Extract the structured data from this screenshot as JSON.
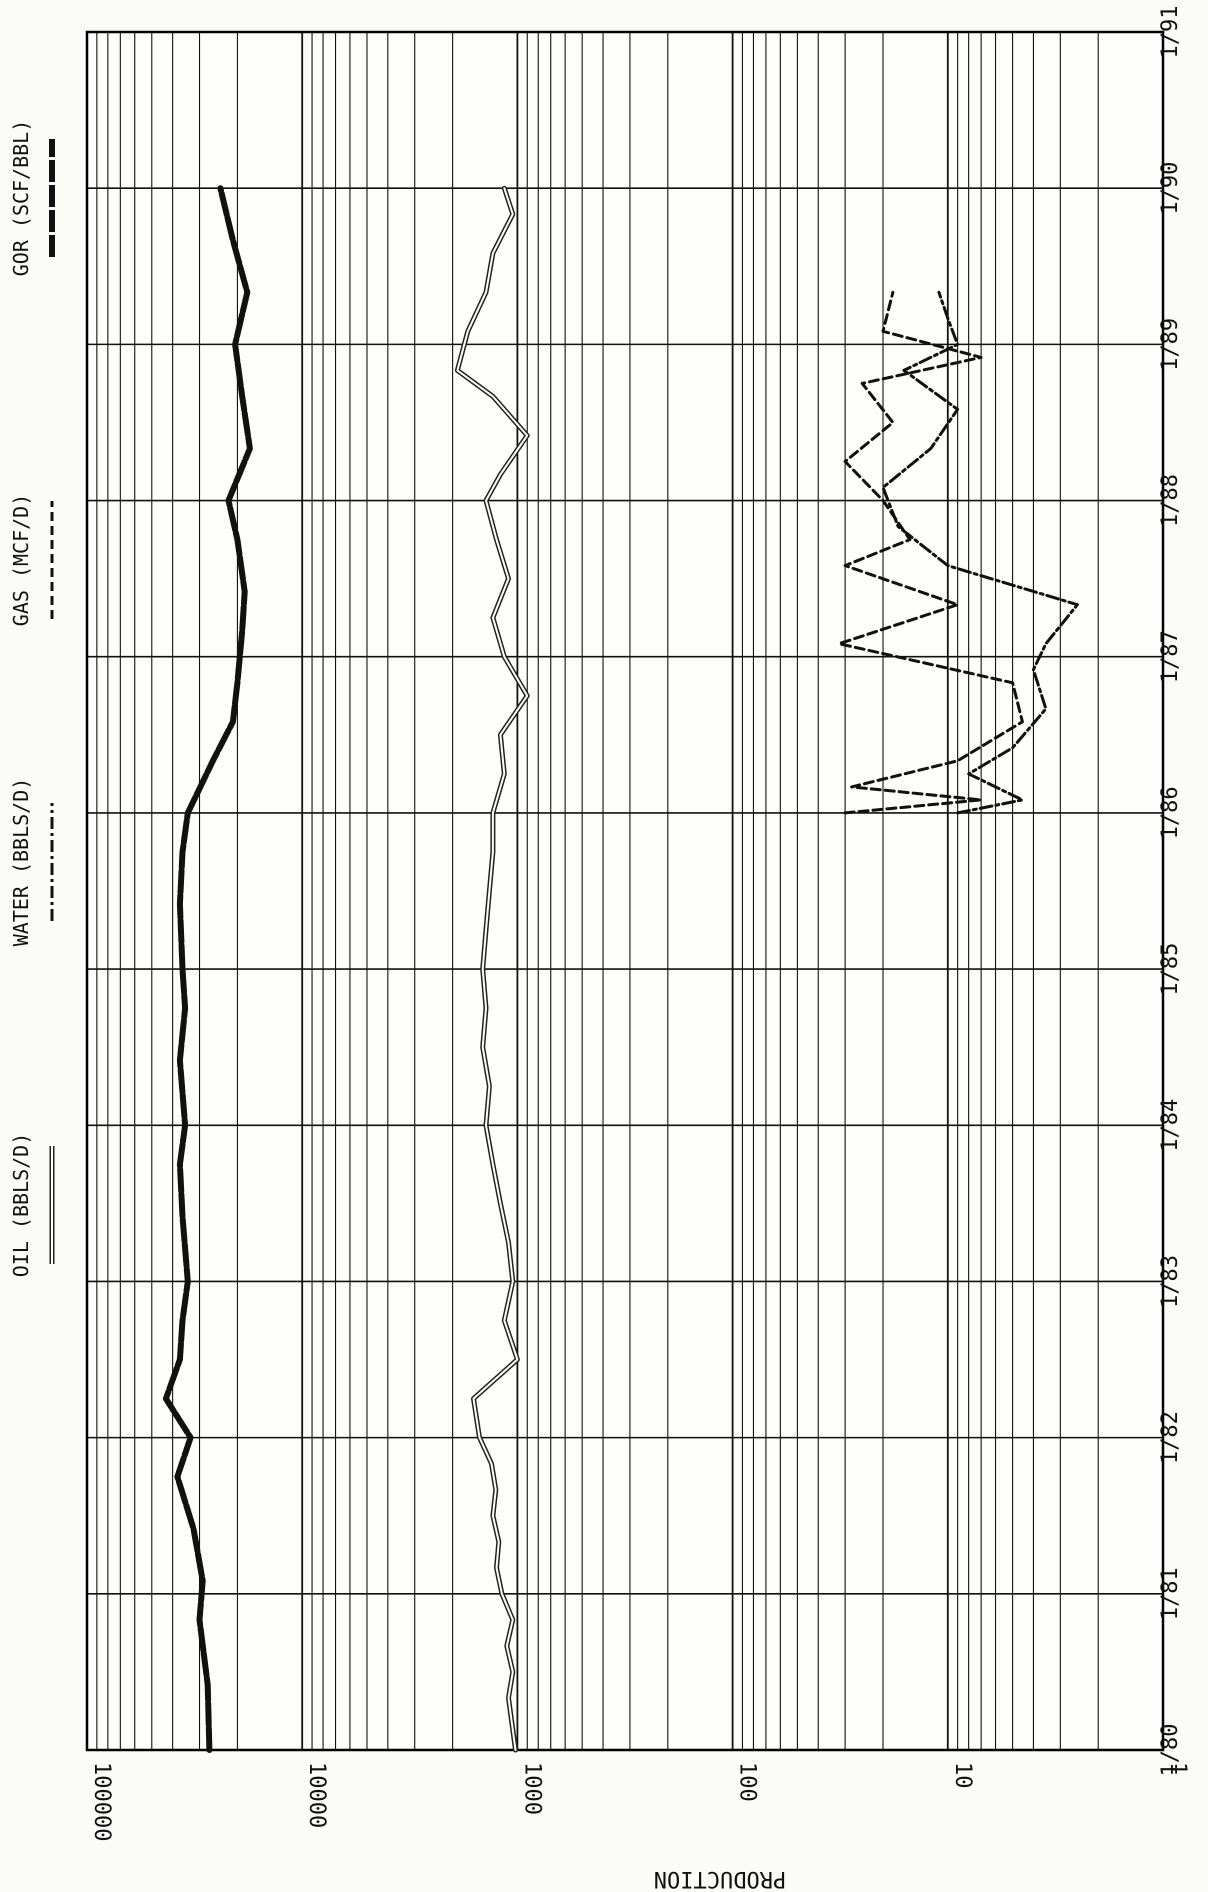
{
  "chart_data": {
    "type": "line",
    "orientation": "rotated 90 degrees clockwise (time runs bottom to top, log production axis runs left to right)",
    "ylabel": "PRODUCTION",
    "yscale": "log",
    "ylim": [
      1,
      100000
    ],
    "ytick_labels": [
      "100000",
      "10000",
      "1000",
      "100",
      "10",
      "1"
    ],
    "xlim": [
      "1/80",
      "1/91"
    ],
    "xtick_labels": [
      "1/80",
      "1/81",
      "1/82",
      "1/83",
      "1/84",
      "1/85",
      "1/86",
      "1/87",
      "1/88",
      "1/89",
      "1/90",
      "1/91"
    ],
    "grid": true,
    "legend_position": "along the top (left edge of rotated page)",
    "series": [
      {
        "name": "OIL (BBLS/D)",
        "style": "double-line",
        "color": "#222222",
        "points": [
          [
            "1980-01",
            1020
          ],
          [
            "1980-03",
            1060
          ],
          [
            "1980-05",
            1100
          ],
          [
            "1980-07",
            1050
          ],
          [
            "1980-09",
            1120
          ],
          [
            "1980-11",
            1050
          ],
          [
            "1981-01",
            1180
          ],
          [
            "1981-03",
            1250
          ],
          [
            "1981-05",
            1220
          ],
          [
            "1981-07",
            1300
          ],
          [
            "1981-09",
            1260
          ],
          [
            "1981-11",
            1320
          ],
          [
            "1982-01",
            1500
          ],
          [
            "1982-04",
            1600
          ],
          [
            "1982-07",
            1000
          ],
          [
            "1982-10",
            1150
          ],
          [
            "1983-01",
            1050
          ],
          [
            "1983-04",
            1100
          ],
          [
            "1983-07",
            1200
          ],
          [
            "1983-10",
            1300
          ],
          [
            "1984-01",
            1400
          ],
          [
            "1984-04",
            1350
          ],
          [
            "1984-07",
            1450
          ],
          [
            "1984-10",
            1400
          ],
          [
            "1985-01",
            1450
          ],
          [
            "1985-04",
            1400
          ],
          [
            "1985-07",
            1350
          ],
          [
            "1985-10",
            1300
          ],
          [
            "1986-01",
            1300
          ],
          [
            "1986-04",
            1150
          ],
          [
            "1986-07",
            1200
          ],
          [
            "1986-10",
            900
          ],
          [
            "1987-01",
            1150
          ],
          [
            "1987-04",
            1300
          ],
          [
            "1987-07",
            1100
          ],
          [
            "1987-10",
            1250
          ],
          [
            "1988-01",
            1400
          ],
          [
            "1988-03",
            1200
          ],
          [
            "1988-06",
            900
          ],
          [
            "1988-09",
            1300
          ],
          [
            "1988-11",
            1900
          ],
          [
            "1989-02",
            1700
          ],
          [
            "1989-05",
            1400
          ],
          [
            "1989-08",
            1300
          ],
          [
            "1989-11",
            1050
          ],
          [
            "1990-01",
            1150
          ]
        ]
      },
      {
        "name": "WATER (BBLS/D)",
        "style": "dash-dot",
        "color": "#111111",
        "points": [
          [
            "1986-01",
            9
          ],
          [
            "1986-02",
            4.5
          ],
          [
            "1986-04",
            8
          ],
          [
            "1986-06",
            5
          ],
          [
            "1986-09",
            3.5
          ],
          [
            "1986-12",
            4
          ],
          [
            "1987-02",
            3.5
          ],
          [
            "1987-05",
            2.5
          ],
          [
            "1987-08",
            10
          ],
          [
            "1987-11",
            17
          ],
          [
            "1988-02",
            20
          ],
          [
            "1988-05",
            12
          ],
          [
            "1988-08",
            9
          ],
          [
            "1988-11",
            16
          ],
          [
            "1989-01",
            9
          ],
          [
            "1989-03",
            10
          ],
          [
            "1989-05",
            11
          ]
        ]
      },
      {
        "name": "GAS (MCF/D)",
        "style": "dashed",
        "color": "#111111",
        "points": [
          [
            "1986-01",
            30
          ],
          [
            "1986-02",
            7
          ],
          [
            "1986-03",
            28
          ],
          [
            "1986-05",
            9
          ],
          [
            "1986-08",
            4.5
          ],
          [
            "1986-11",
            5
          ],
          [
            "1987-02",
            32
          ],
          [
            "1987-05",
            9
          ],
          [
            "1987-08",
            30
          ],
          [
            "1987-10",
            15
          ],
          [
            "1988-01",
            20
          ],
          [
            "1988-04",
            30
          ],
          [
            "1988-07",
            18
          ],
          [
            "1988-10",
            25
          ],
          [
            "1988-12",
            7
          ],
          [
            "1989-02",
            20
          ],
          [
            "1989-05",
            18
          ]
        ]
      },
      {
        "name": "GOR (SCF/BBL)",
        "style": "thick dashed",
        "color": "#111111",
        "points": [
          [
            "1980-01",
            27000
          ],
          [
            "1980-06",
            27500
          ],
          [
            "1980-11",
            30000
          ],
          [
            "1981-02",
            29000
          ],
          [
            "1981-06",
            32000
          ],
          [
            "1981-10",
            38000
          ],
          [
            "1982-01",
            33000
          ],
          [
            "1982-04",
            43000
          ],
          [
            "1982-07",
            37000
          ],
          [
            "1982-10",
            36000
          ],
          [
            "1983-01",
            34000
          ],
          [
            "1983-06",
            36000
          ],
          [
            "1983-10",
            37000
          ],
          [
            "1984-01",
            35000
          ],
          [
            "1984-06",
            37000
          ],
          [
            "1984-10",
            35000
          ],
          [
            "1985-01",
            36000
          ],
          [
            "1985-06",
            37000
          ],
          [
            "1985-10",
            36000
          ],
          [
            "1986-01",
            34000
          ],
          [
            "1986-05",
            26000
          ],
          [
            "1986-08",
            21000
          ],
          [
            "1986-11",
            20000
          ],
          [
            "1987-03",
            19000
          ],
          [
            "1987-06",
            18500
          ],
          [
            "1987-10",
            20000
          ],
          [
            "1988-01",
            22000
          ],
          [
            "1988-05",
            17500
          ],
          [
            "1988-09",
            19000
          ],
          [
            "1989-01",
            20500
          ],
          [
            "1989-05",
            18000
          ],
          [
            "1989-09",
            21000
          ],
          [
            "1990-01",
            24000
          ]
        ]
      }
    ]
  }
}
